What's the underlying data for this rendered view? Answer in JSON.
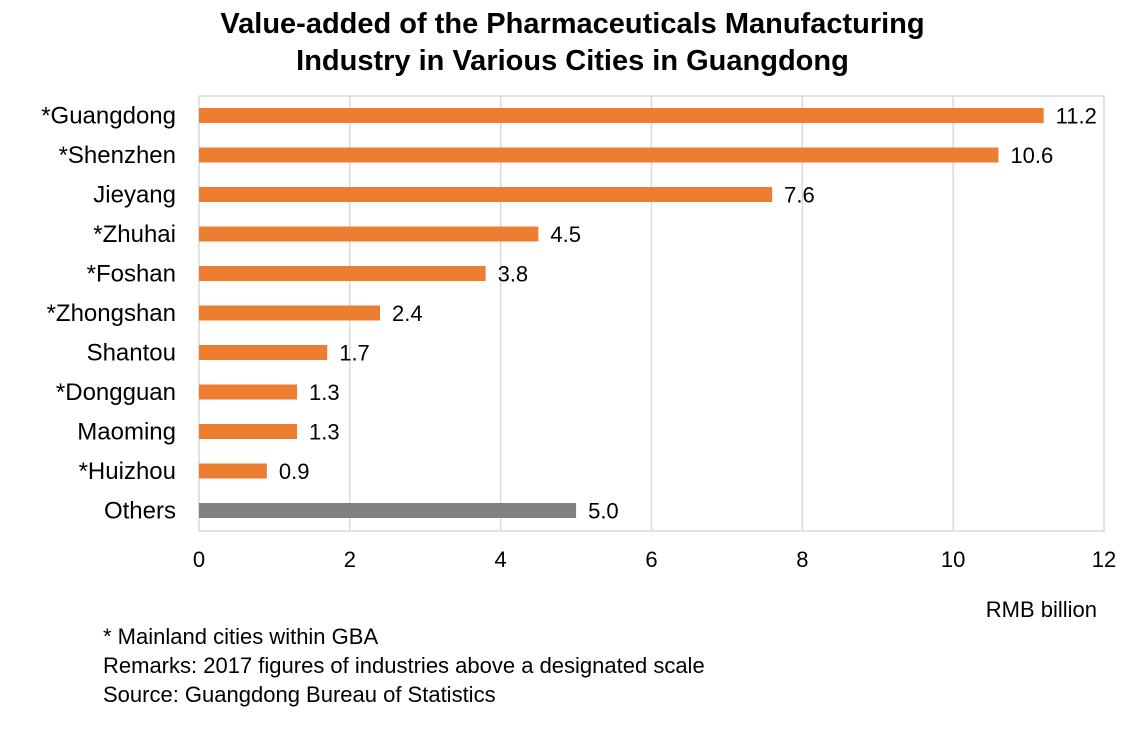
{
  "chart_data": {
    "type": "bar",
    "orientation": "horizontal",
    "title_lines": [
      "Value-added of the Pharmaceuticals Manufacturing",
      "Industry in Various Cities in Guangdong"
    ],
    "categories": [
      "*Guangdong",
      "*Shenzhen",
      "Jieyang",
      "*Zhuhai",
      "*Foshan",
      "*Zhongshan",
      "Shantou",
      "*Dongguan",
      "Maoming",
      "*Huizhou",
      "Others"
    ],
    "values": [
      11.2,
      10.6,
      7.6,
      4.5,
      3.8,
      2.4,
      1.7,
      1.3,
      1.3,
      0.9,
      5.0
    ],
    "value_labels": [
      "11.2",
      "10.6",
      "7.6",
      "4.5",
      "3.8",
      "2.4",
      "1.7",
      "1.3",
      "1.3",
      "0.9",
      "5.0"
    ],
    "bar_colors": [
      "#ED7D31",
      "#ED7D31",
      "#ED7D31",
      "#ED7D31",
      "#ED7D31",
      "#ED7D31",
      "#ED7D31",
      "#ED7D31",
      "#ED7D31",
      "#ED7D31",
      "#808080"
    ],
    "xlim": [
      0,
      12
    ],
    "xticks": [
      0,
      2,
      4,
      6,
      8,
      10,
      12
    ],
    "xlabel": "RMB billion",
    "grid": true,
    "gridline_color": "#D9D9D9"
  },
  "footnotes": {
    "gba_note": "* Mainland cities within GBA",
    "remarks": "Remarks: 2017 figures of industries above a designated scale",
    "source": "Source: Guangdong Bureau of Statistics"
  }
}
